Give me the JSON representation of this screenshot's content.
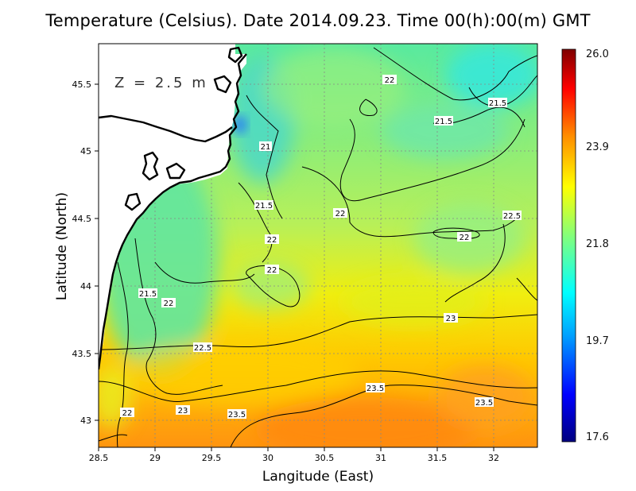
{
  "figure": {
    "title": "Temperature (Celsius). Date 2014.09.23. Time 00(h):00(m)  GMT",
    "depth_label": "Z = 2.5 m",
    "xlabel": "Langitude (East)",
    "ylabel": "Latitude (North)"
  },
  "chart_data": {
    "type": "heatmap",
    "variable": "Temperature (Celsius)",
    "date": "2014.09.23",
    "time": "00(h):00(m) GMT",
    "depth": "Z = 2.5 m",
    "xlim": [
      28.5,
      32.4
    ],
    "ylim": [
      42.8,
      45.8
    ],
    "x_ticks": [
      "28.5",
      "29",
      "29.5",
      "30",
      "30.5",
      "31",
      "31.5",
      "32"
    ],
    "x_tick_values": [
      28.5,
      29,
      29.5,
      30,
      30.5,
      31,
      31.5,
      32
    ],
    "y_ticks": [
      "43",
      "43.5",
      "44",
      "44.5",
      "45",
      "45.5"
    ],
    "y_tick_values": [
      43,
      43.5,
      44,
      44.5,
      45,
      45.5
    ],
    "grid": true,
    "colorbar": {
      "min": 17.6,
      "max": 26.0,
      "ticks": [
        "26.0",
        "23.9",
        "21.8",
        "19.7",
        "17.6"
      ],
      "tick_values": [
        26.0,
        23.9,
        21.8,
        19.7,
        17.6
      ],
      "colors": [
        "#00007f",
        "#0000ff",
        "#00a0ff",
        "#00ffff",
        "#7fff7f",
        "#ffff00",
        "#ff8c00",
        "#ff0000",
        "#7f0000"
      ]
    },
    "contour_labels": [
      {
        "text": "22",
        "lon": 31.05,
        "lat": 45.55
      },
      {
        "text": "21.5",
        "lon": 31.97,
        "lat": 45.37
      },
      {
        "text": "21.5",
        "lon": 31.55,
        "lat": 45.22
      },
      {
        "text": "21",
        "lon": 29.96,
        "lat": 45.03
      },
      {
        "text": "21.5",
        "lon": 29.96,
        "lat": 44.62
      },
      {
        "text": "22",
        "lon": 30.62,
        "lat": 44.56
      },
      {
        "text": "22",
        "lon": 30.02,
        "lat": 44.39
      },
      {
        "text": "22.5",
        "lon": 32.18,
        "lat": 44.55
      },
      {
        "text": "22",
        "lon": 31.72,
        "lat": 44.41
      },
      {
        "text": "22",
        "lon": 30.02,
        "lat": 44.07
      },
      {
        "text": "21.5",
        "lon": 28.95,
        "lat": 43.95
      },
      {
        "text": "22",
        "lon": 29.12,
        "lat": 43.9
      },
      {
        "text": "23",
        "lon": 31.6,
        "lat": 43.78
      },
      {
        "text": "22.5",
        "lon": 29.48,
        "lat": 43.55
      },
      {
        "text": "23.5",
        "lon": 30.96,
        "lat": 43.19
      },
      {
        "text": "23.5",
        "lon": 31.92,
        "lat": 43.13
      },
      {
        "text": "22",
        "lon": 28.73,
        "lat": 43.04
      },
      {
        "text": "23",
        "lon": 29.23,
        "lat": 43.06
      },
      {
        "text": "23.5",
        "lon": 29.72,
        "lat": 43.03
      }
    ],
    "coastline": [
      [
        29.8,
        45.8
      ],
      [
        29.76,
        45.65
      ],
      [
        29.78,
        45.55
      ],
      [
        29.72,
        45.42
      ],
      [
        29.7,
        45.34
      ],
      [
        29.72,
        45.25
      ],
      [
        29.67,
        45.15
      ],
      [
        29.68,
        45.06
      ],
      [
        29.6,
        44.98
      ],
      [
        29.58,
        44.88
      ],
      [
        29.52,
        44.82
      ],
      [
        29.45,
        44.8
      ],
      [
        29.32,
        44.8
      ],
      [
        29.25,
        44.72
      ],
      [
        29.1,
        44.7
      ],
      [
        29.0,
        44.62
      ],
      [
        28.88,
        44.55
      ],
      [
        28.82,
        44.42
      ],
      [
        28.74,
        44.3
      ],
      [
        28.68,
        44.15
      ],
      [
        28.64,
        44.0
      ],
      [
        28.62,
        43.88
      ],
      [
        28.58,
        43.75
      ],
      [
        28.55,
        43.6
      ],
      [
        28.5,
        43.45
      ]
    ],
    "delta_shore": [
      [
        28.5,
        45.25
      ],
      [
        28.7,
        45.2
      ],
      [
        28.95,
        45.12
      ],
      [
        29.15,
        45.0
      ],
      [
        29.3,
        44.9
      ],
      [
        29.38,
        44.82
      ]
    ],
    "lagoons": [
      [
        [
          28.95,
          44.9
        ],
        [
          29.05,
          44.95
        ],
        [
          29.0,
          44.8
        ],
        [
          29.1,
          44.72
        ],
        [
          28.92,
          44.75
        ],
        [
          28.95,
          44.9
        ]
      ],
      [
        [
          28.62,
          44.45
        ],
        [
          28.72,
          44.55
        ],
        [
          28.8,
          44.5
        ],
        [
          28.75,
          44.35
        ],
        [
          28.65,
          44.3
        ],
        [
          28.62,
          44.45
        ]
      ],
      [
        [
          29.25,
          45.68
        ],
        [
          29.32,
          45.75
        ],
        [
          29.38,
          45.6
        ],
        [
          29.3,
          45.55
        ],
        [
          29.25,
          45.68
        ]
      ]
    ],
    "inland_rivers": [
      [
        [
          29.52,
          45.75
        ],
        [
          29.6,
          45.68
        ],
        [
          29.56,
          45.6
        ]
      ],
      [
        [
          28.5,
          45.8
        ],
        [
          28.5,
          45.8
        ]
      ]
    ]
  }
}
